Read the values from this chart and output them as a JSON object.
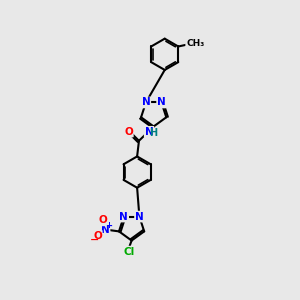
{
  "bg_color": "#e8e8e8",
  "bond_color": "#000000",
  "bond_width": 1.5,
  "atom_colors": {
    "N": "#0000ff",
    "O": "#ff0000",
    "Cl": "#00aa00",
    "C": "#000000",
    "H": "#008080",
    "plus": "#0000ff",
    "minus": "#ff0000"
  },
  "figsize": [
    3.0,
    3.0
  ],
  "dpi": 100
}
